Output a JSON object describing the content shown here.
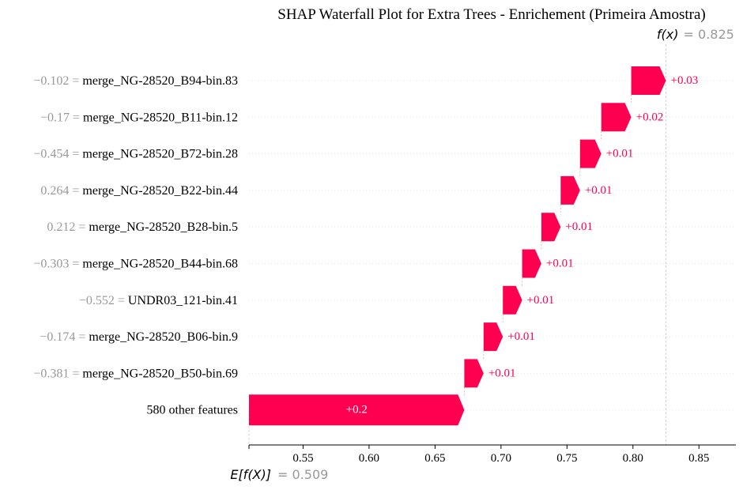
{
  "chart_data": {
    "type": "bar",
    "title": "SHAP Waterfall Plot for Extra Trees - Enrichement (Primeira Amostra)",
    "fx_label": "f(x)",
    "fx_value": "= 0.825",
    "efx_label": "E[f(X)]",
    "efx_value": "= 0.509",
    "base_value": 0.509,
    "final_value": 0.825,
    "xlim": [
      0.509,
      0.878
    ],
    "xticks": [
      0.55,
      0.6,
      0.65,
      0.7,
      0.75,
      0.8,
      0.85
    ],
    "xtick_labels": [
      "0.55",
      "0.60",
      "0.65",
      "0.70",
      "0.75",
      "0.80",
      "0.85"
    ],
    "features": [
      {
        "value": "−0.102 =",
        "name": "merge_NG-28520_B94-bin.83",
        "start": 0.7987,
        "end": 0.825,
        "contrib": "+0.03"
      },
      {
        "value": "−0.17 =",
        "name": "merge_NG-28520_B11-bin.12",
        "start": 0.776,
        "end": 0.7987,
        "contrib": "+0.02"
      },
      {
        "value": "−0.454 =",
        "name": "merge_NG-28520_B72-bin.28",
        "start": 0.7599,
        "end": 0.776,
        "contrib": "+0.01"
      },
      {
        "value": "0.264 =",
        "name": "merge_NG-28520_B22-bin.44",
        "start": 0.7452,
        "end": 0.7599,
        "contrib": "+0.01"
      },
      {
        "value": "0.212 =",
        "name": "merge_NG-28520_B28-bin.5",
        "start": 0.7306,
        "end": 0.7452,
        "contrib": "+0.01"
      },
      {
        "value": "−0.303 =",
        "name": "merge_NG-28520_B44-bin.68",
        "start": 0.716,
        "end": 0.7306,
        "contrib": "+0.01"
      },
      {
        "value": "−0.552 =",
        "name": "UNDR03_121-bin.41",
        "start": 0.7014,
        "end": 0.716,
        "contrib": "+0.01"
      },
      {
        "value": "−0.174 =",
        "name": "merge_NG-28520_B06-bin.9",
        "start": 0.6868,
        "end": 0.7014,
        "contrib": "+0.01"
      },
      {
        "value": "−0.381 =",
        "name": "merge_NG-28520_B50-bin.69",
        "start": 0.6722,
        "end": 0.6868,
        "contrib": "+0.01"
      },
      {
        "value": "",
        "name": "580 other features",
        "start": 0.509,
        "end": 0.6722,
        "contrib": "+0.2"
      }
    ],
    "colors": {
      "positive": "#ff0051",
      "value_text": "#999999",
      "name_text": "#000000",
      "grid": "#cccccc",
      "axis": "#000000"
    }
  }
}
